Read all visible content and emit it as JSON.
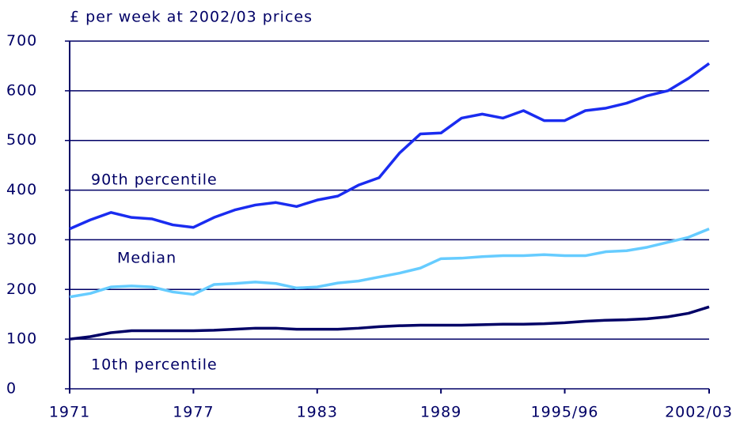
{
  "chart_data": {
    "type": "line",
    "y_axis_label": "£ per week at 2002/03 prices",
    "categories": [
      "1971",
      null,
      null,
      null,
      null,
      null,
      "1977",
      null,
      null,
      null,
      null,
      null,
      "1983",
      null,
      null,
      null,
      null,
      null,
      "1989",
      null,
      null,
      null,
      null,
      null,
      "1995/96",
      null,
      null,
      null,
      null,
      null,
      null,
      "2002/03"
    ],
    "series": [
      {
        "name": "90th percentile",
        "color": "#1a2cf0",
        "values": [
          322,
          340,
          355,
          345,
          342,
          330,
          325,
          345,
          360,
          370,
          375,
          367,
          380,
          388,
          410,
          425,
          475,
          513,
          515,
          545,
          553,
          545,
          560,
          540,
          540,
          560,
          565,
          575,
          590,
          600,
          625,
          655
        ]
      },
      {
        "name": "Median",
        "color": "#66ccff",
        "values": [
          185,
          192,
          205,
          207,
          205,
          195,
          190,
          210,
          212,
          215,
          212,
          203,
          205,
          213,
          217,
          225,
          233,
          243,
          262,
          263,
          266,
          268,
          268,
          270,
          268,
          268,
          276,
          278,
          285,
          295,
          305,
          322
        ]
      },
      {
        "name": "10th percentile",
        "color": "#000066",
        "values": [
          100,
          105,
          113,
          117,
          117,
          117,
          117,
          118,
          120,
          122,
          122,
          120,
          120,
          120,
          122,
          125,
          127,
          128,
          128,
          128,
          129,
          130,
          130,
          131,
          133,
          136,
          138,
          139,
          141,
          145,
          152,
          165
        ]
      }
    ],
    "ylim": [
      0,
      700
    ],
    "yticks": [
      0,
      100,
      200,
      300,
      400,
      500,
      600,
      700
    ],
    "grid": true
  }
}
